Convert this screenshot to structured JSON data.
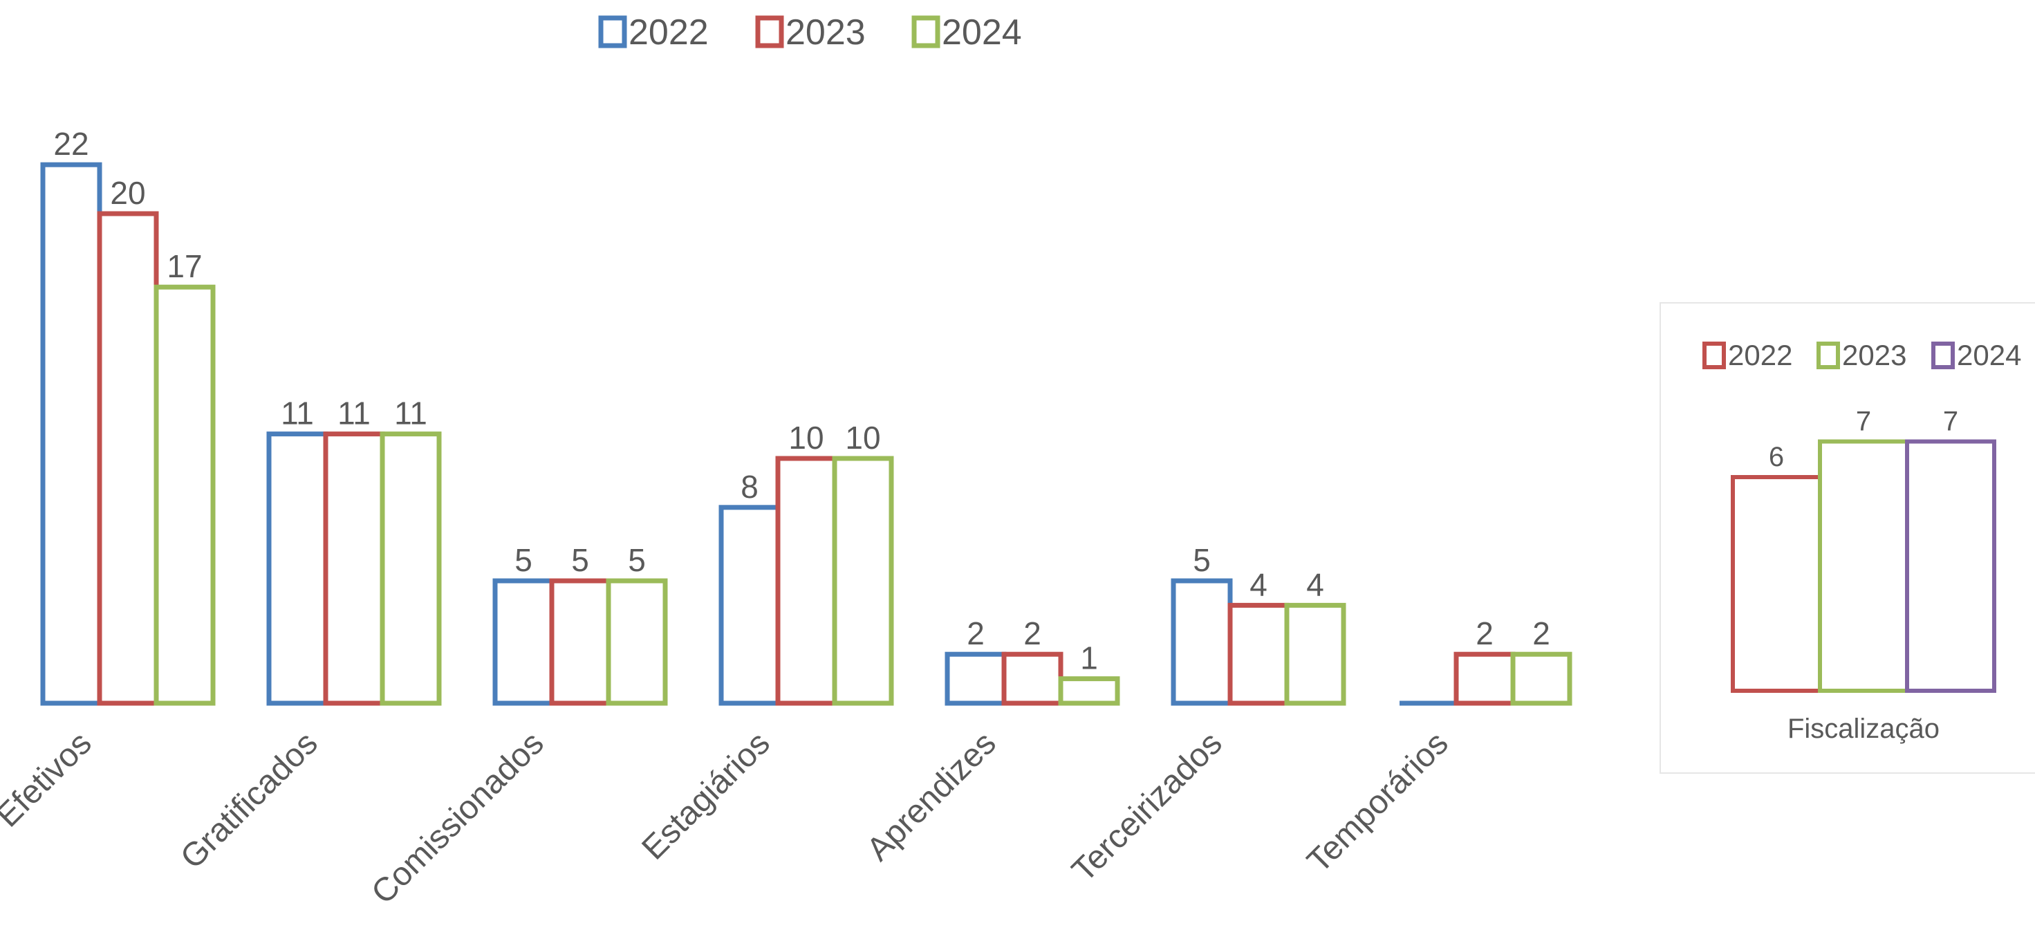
{
  "chart_data": [
    {
      "type": "bar",
      "categories": [
        "Efetivos",
        "Gratificados",
        "Comissionados",
        "Estagiários",
        "Aprendizes",
        "Terceirizados",
        "Temporários"
      ],
      "series": [
        {
          "name": "2022",
          "color": "#4a7ebb",
          "values": [
            22,
            11,
            5,
            8,
            2,
            5,
            0
          ],
          "labels": [
            "22",
            "11",
            "5",
            "8",
            "2",
            "5",
            ""
          ]
        },
        {
          "name": "2023",
          "color": "#c0504d",
          "values": [
            20,
            11,
            5,
            10,
            2,
            4,
            2
          ],
          "labels": [
            "20",
            "11",
            "5",
            "10",
            "2",
            "4",
            "2"
          ]
        },
        {
          "name": "2024",
          "color": "#9bbb59",
          "values": [
            17,
            11,
            5,
            10,
            1,
            4,
            2
          ],
          "labels": [
            "17",
            "11",
            "5",
            "10",
            "1",
            "4",
            "2"
          ]
        }
      ],
      "ylim": [
        0,
        23
      ],
      "grid": false,
      "legend_position": "top"
    },
    {
      "type": "bar",
      "categories": [
        "Fiscalização"
      ],
      "series": [
        {
          "name": "2022",
          "color": "#c0504d",
          "values": [
            6
          ],
          "labels": [
            "6"
          ]
        },
        {
          "name": "2023",
          "color": "#9bbb59",
          "values": [
            7
          ],
          "labels": [
            "7"
          ]
        },
        {
          "name": "2024",
          "color": "#8064a2",
          "values": [
            7
          ],
          "labels": [
            "7"
          ]
        }
      ],
      "ylim": [
        0,
        7.5
      ],
      "grid": false,
      "legend_position": "top"
    }
  ]
}
